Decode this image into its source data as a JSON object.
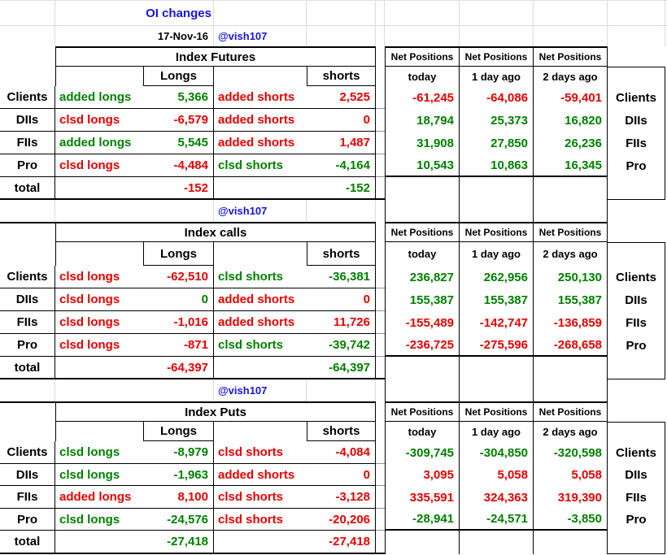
{
  "colors": {
    "green": "#008000",
    "red": "#e80000",
    "blue": "#1414e6",
    "black": "#000000"
  },
  "header": {
    "title": "OI changes",
    "date": "17-Nov-16",
    "handle": "@vish107"
  },
  "labels": {
    "net_positions": "Net Positions",
    "net_subheaders": [
      "today",
      "1 day ago",
      "2 days ago"
    ],
    "longs": "Longs",
    "shorts": "shorts",
    "total": "total"
  },
  "sections": [
    {
      "title": "Index Futures",
      "handle_below": "@vish107",
      "rows": [
        {
          "label": "Clients",
          "long_action": "added longs",
          "long_action_color": "green",
          "long_value": "5,366",
          "long_value_color": "green",
          "short_action": "added shorts",
          "short_action_color": "red",
          "short_value": "2,525",
          "short_value_color": "red",
          "net": [
            {
              "value": "-61,245",
              "color": "red"
            },
            {
              "value": "-64,086",
              "color": "red"
            },
            {
              "value": "-59,401",
              "color": "red"
            }
          ]
        },
        {
          "label": "DIIs",
          "long_action": "clsd longs",
          "long_action_color": "red",
          "long_value": "-6,579",
          "long_value_color": "red",
          "short_action": "added shorts",
          "short_action_color": "red",
          "short_value": "0",
          "short_value_color": "red",
          "net": [
            {
              "value": "18,794",
              "color": "green"
            },
            {
              "value": "25,373",
              "color": "green"
            },
            {
              "value": "16,820",
              "color": "green"
            }
          ]
        },
        {
          "label": "FIIs",
          "long_action": "added longs",
          "long_action_color": "green",
          "long_value": "5,545",
          "long_value_color": "green",
          "short_action": "added shorts",
          "short_action_color": "red",
          "short_value": "1,487",
          "short_value_color": "red",
          "net": [
            {
              "value": "31,908",
              "color": "green"
            },
            {
              "value": "27,850",
              "color": "green"
            },
            {
              "value": "26,236",
              "color": "green"
            }
          ]
        },
        {
          "label": "Pro",
          "long_action": "clsd longs",
          "long_action_color": "red",
          "long_value": "-4,484",
          "long_value_color": "red",
          "short_action": "clsd shorts",
          "short_action_color": "green",
          "short_value": "-4,164",
          "short_value_color": "green",
          "net": [
            {
              "value": "10,543",
              "color": "green"
            },
            {
              "value": "10,863",
              "color": "green"
            },
            {
              "value": "16,345",
              "color": "green"
            }
          ]
        }
      ],
      "total": {
        "long": "-152",
        "long_color": "red",
        "short": "-152",
        "short_color": "green"
      }
    },
    {
      "title": "Index calls",
      "handle_below": "@vish107",
      "rows": [
        {
          "label": "Clients",
          "long_action": "clsd longs",
          "long_action_color": "red",
          "long_value": "-62,510",
          "long_value_color": "red",
          "short_action": "clsd shorts",
          "short_action_color": "green",
          "short_value": "-36,381",
          "short_value_color": "green",
          "net": [
            {
              "value": "236,827",
              "color": "green"
            },
            {
              "value": "262,956",
              "color": "green"
            },
            {
              "value": "250,130",
              "color": "green"
            }
          ]
        },
        {
          "label": "DIIs",
          "long_action": "clsd longs",
          "long_action_color": "red",
          "long_value": "0",
          "long_value_color": "green",
          "short_action": "added shorts",
          "short_action_color": "red",
          "short_value": "0",
          "short_value_color": "red",
          "net": [
            {
              "value": "155,387",
              "color": "green"
            },
            {
              "value": "155,387",
              "color": "green"
            },
            {
              "value": "155,387",
              "color": "green"
            }
          ]
        },
        {
          "label": "FIIs",
          "long_action": "clsd longs",
          "long_action_color": "red",
          "long_value": "-1,016",
          "long_value_color": "red",
          "short_action": "added shorts",
          "short_action_color": "red",
          "short_value": "11,726",
          "short_value_color": "red",
          "net": [
            {
              "value": "-155,489",
              "color": "red"
            },
            {
              "value": "-142,747",
              "color": "red"
            },
            {
              "value": "-136,859",
              "color": "red"
            }
          ]
        },
        {
          "label": "Pro",
          "long_action": "clsd longs",
          "long_action_color": "red",
          "long_value": "-871",
          "long_value_color": "red",
          "short_action": "clsd shorts",
          "short_action_color": "green",
          "short_value": "-39,742",
          "short_value_color": "green",
          "net": [
            {
              "value": "-236,725",
              "color": "red"
            },
            {
              "value": "-275,596",
              "color": "red"
            },
            {
              "value": "-268,658",
              "color": "red"
            }
          ]
        }
      ],
      "total": {
        "long": "-64,397",
        "long_color": "red",
        "short": "-64,397",
        "short_color": "green"
      }
    },
    {
      "title": "Index Puts",
      "handle_below": "",
      "rows": [
        {
          "label": "Clients",
          "long_action": "clsd longs",
          "long_action_color": "green",
          "long_value": "-8,979",
          "long_value_color": "green",
          "short_action": "clsd shorts",
          "short_action_color": "red",
          "short_value": "-4,084",
          "short_value_color": "red",
          "net": [
            {
              "value": "-309,745",
              "color": "green"
            },
            {
              "value": "-304,850",
              "color": "green"
            },
            {
              "value": "-320,598",
              "color": "green"
            }
          ]
        },
        {
          "label": "DIIs",
          "long_action": "clsd longs",
          "long_action_color": "green",
          "long_value": "-1,963",
          "long_value_color": "green",
          "short_action": "added shorts",
          "short_action_color": "red",
          "short_value": "0",
          "short_value_color": "red",
          "net": [
            {
              "value": "3,095",
              "color": "red"
            },
            {
              "value": "5,058",
              "color": "red"
            },
            {
              "value": "5,058",
              "color": "red"
            }
          ]
        },
        {
          "label": "FIIs",
          "long_action": "added longs",
          "long_action_color": "red",
          "long_value": "8,100",
          "long_value_color": "red",
          "short_action": "clsd shorts",
          "short_action_color": "red",
          "short_value": "-3,128",
          "short_value_color": "red",
          "net": [
            {
              "value": "335,591",
              "color": "red"
            },
            {
              "value": "324,363",
              "color": "red"
            },
            {
              "value": "319,390",
              "color": "red"
            }
          ]
        },
        {
          "label": "Pro",
          "long_action": "clsd longs",
          "long_action_color": "green",
          "long_value": "-24,576",
          "long_value_color": "green",
          "short_action": "clsd shorts",
          "short_action_color": "red",
          "short_value": "-20,206",
          "short_value_color": "red",
          "net": [
            {
              "value": "-28,941",
              "color": "green"
            },
            {
              "value": "-24,571",
              "color": "green"
            },
            {
              "value": "-3,850",
              "color": "green"
            }
          ]
        }
      ],
      "total": {
        "long": "-27,418",
        "long_color": "green",
        "short": "-27,418",
        "short_color": "red"
      }
    }
  ]
}
